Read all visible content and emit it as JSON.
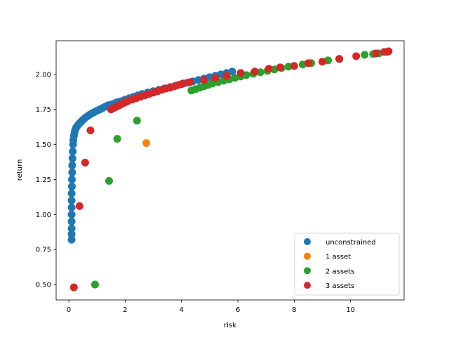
{
  "chart_data": {
    "type": "scatter",
    "xlabel": "risk",
    "ylabel": "return",
    "xlim": [
      -0.45,
      11.9
    ],
    "ylim": [
      0.39,
      2.24
    ],
    "xticks": [
      "0",
      "2",
      "4",
      "6",
      "8",
      "10"
    ],
    "xtick_values": [
      0,
      2,
      4,
      6,
      8,
      10
    ],
    "yticks": [
      "0.50",
      "0.75",
      "1.00",
      "1.25",
      "1.50",
      "1.75",
      "2.00"
    ],
    "ytick_values": [
      0.5,
      0.75,
      1.0,
      1.25,
      1.5,
      1.75,
      2.0
    ],
    "grid": false,
    "legend_position": "lower-right",
    "series": [
      {
        "name": "unconstrained",
        "color": "#1f77b4",
        "x": [
          0.1,
          0.1,
          0.1,
          0.1,
          0.1,
          0.1,
          0.1,
          0.1,
          0.11,
          0.11,
          0.12,
          0.12,
          0.13,
          0.14,
          0.15,
          0.16,
          0.18,
          0.2,
          0.22,
          0.26,
          0.3,
          0.35,
          0.4,
          0.45,
          0.5,
          0.58,
          0.65,
          0.72,
          0.8,
          0.9,
          1.0,
          1.1,
          1.2,
          1.3,
          1.4,
          1.5,
          1.6,
          1.7,
          1.8,
          1.9,
          2.0,
          2.15,
          2.3,
          2.45,
          2.6,
          2.8,
          3.0,
          3.2,
          3.4,
          3.6,
          3.8,
          4.0,
          4.2,
          4.4,
          4.6,
          4.8,
          5.0,
          5.2,
          5.4,
          5.6,
          5.8
        ],
        "y": [
          0.82,
          0.86,
          0.9,
          0.95,
          1.0,
          1.05,
          1.1,
          1.15,
          1.2,
          1.25,
          1.3,
          1.35,
          1.4,
          1.45,
          1.5,
          1.53,
          1.56,
          1.58,
          1.6,
          1.62,
          1.63,
          1.645,
          1.655,
          1.665,
          1.675,
          1.69,
          1.7,
          1.71,
          1.72,
          1.73,
          1.74,
          1.75,
          1.76,
          1.77,
          1.78,
          1.785,
          1.79,
          1.8,
          1.805,
          1.81,
          1.82,
          1.83,
          1.84,
          1.85,
          1.86,
          1.87,
          1.88,
          1.89,
          1.9,
          1.91,
          1.92,
          1.93,
          1.94,
          1.95,
          1.96,
          1.97,
          1.98,
          1.99,
          2.0,
          2.01,
          2.02
        ]
      },
      {
        "name": "1 asset",
        "color": "#ff7f0e",
        "x": [
          2.75
        ],
        "y": [
          1.51
        ]
      },
      {
        "name": "2 assets",
        "color": "#2ca02c",
        "x": [
          0.93,
          1.43,
          1.72,
          2.42,
          4.35,
          4.5,
          4.65,
          4.8,
          4.95,
          5.1,
          5.3,
          5.5,
          5.7,
          5.9,
          6.1,
          6.3,
          6.55,
          6.8,
          7.05,
          7.3,
          7.55,
          7.8,
          8.3,
          8.6,
          9.2,
          9.6,
          10.5,
          10.8,
          11.0,
          11.3
        ],
        "y": [
          0.5,
          1.24,
          1.54,
          1.67,
          1.885,
          1.895,
          1.905,
          1.915,
          1.925,
          1.935,
          1.945,
          1.955,
          1.965,
          1.975,
          1.985,
          1.995,
          2.005,
          2.015,
          2.025,
          2.035,
          2.045,
          2.055,
          2.07,
          2.08,
          2.1,
          2.11,
          2.14,
          2.145,
          2.15,
          2.16
        ]
      },
      {
        "name": "3 assets",
        "color": "#d62728",
        "x": [
          0.18,
          0.38,
          0.58,
          0.77,
          1.5,
          1.6,
          1.7,
          1.8,
          1.9,
          2.0,
          2.1,
          2.25,
          2.4,
          2.55,
          2.7,
          2.85,
          3.0,
          3.15,
          3.3,
          3.45,
          3.6,
          3.75,
          3.9,
          4.05,
          4.3,
          4.8,
          5.2,
          5.6,
          6.1,
          6.6,
          7.1,
          7.5,
          8.0,
          8.5,
          9.0,
          9.6,
          10.2,
          10.9,
          11.2,
          11.35
        ],
        "y": [
          0.48,
          1.06,
          1.37,
          1.6,
          1.75,
          1.76,
          1.77,
          1.78,
          1.79,
          1.8,
          1.81,
          1.82,
          1.83,
          1.84,
          1.85,
          1.86,
          1.87,
          1.88,
          1.89,
          1.9,
          1.905,
          1.915,
          1.925,
          1.935,
          1.945,
          1.96,
          1.975,
          1.99,
          2.01,
          2.02,
          2.04,
          2.05,
          2.06,
          2.08,
          2.09,
          2.11,
          2.13,
          2.15,
          2.16,
          2.165
        ]
      }
    ]
  }
}
